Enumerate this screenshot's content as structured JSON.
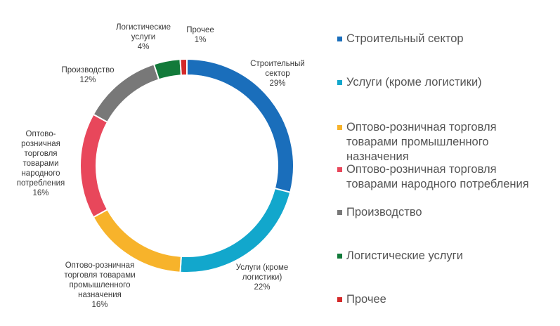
{
  "chart_data": {
    "type": "pie",
    "donut": true,
    "title": "",
    "start_angle_deg": 0,
    "direction": "clockwise",
    "categories": [
      "Строительный сектор",
      "Услуги (кроме логистики)",
      "Оптово-розничная торговля товарами промышленного назначения",
      "Оптово-розничная торговля товарами народного потребления",
      "Производство",
      "Логистические услуги",
      "Прочее"
    ],
    "values": [
      29,
      22,
      16,
      16,
      12,
      4,
      1
    ],
    "colors": [
      "#1A6EBB",
      "#12A7CC",
      "#F7B32B",
      "#E8475B",
      "#787878",
      "#127A3A",
      "#D42A2A"
    ],
    "data_labels": [
      [
        "Строительный",
        "сектор",
        "29%"
      ],
      [
        "Услуги (кроме",
        "логистики)",
        "22%"
      ],
      [
        "Оптово-розничная",
        "торговля товарами",
        "промышленного",
        "назначения",
        "16%"
      ],
      [
        "Оптово-",
        "розничная",
        "торговля",
        "товарами",
        "народного",
        "потребления",
        "16%"
      ],
      [
        "Производство",
        "12%"
      ],
      [
        "Логистические",
        "услуги",
        "4%"
      ],
      [
        "Прочее",
        "1%"
      ]
    ],
    "legend": {
      "position": "right",
      "entries": [
        [
          "Строительный сектор"
        ],
        [
          "Услуги (кроме логистики)"
        ],
        [
          "Оптово-розничная торговля",
          "товарами промышленного",
          "назначения"
        ],
        [
          "Оптово-розничная торговля",
          "товарами народного потребления"
        ],
        [
          "Производство"
        ],
        [
          "Логистические услуги"
        ],
        [
          "Прочее"
        ]
      ]
    }
  }
}
